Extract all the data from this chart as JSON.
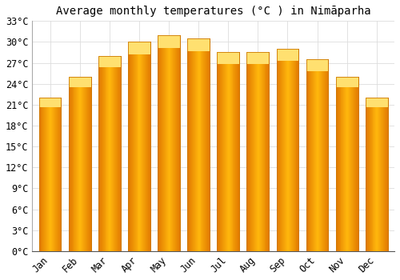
{
  "title": "Average monthly temperatures (°C ) in Nimāparha",
  "months": [
    "Jan",
    "Feb",
    "Mar",
    "Apr",
    "May",
    "Jun",
    "Jul",
    "Aug",
    "Sep",
    "Oct",
    "Nov",
    "Dec"
  ],
  "values": [
    22,
    25,
    28,
    30,
    31,
    30.5,
    28.5,
    28.5,
    29,
    27.5,
    25,
    22
  ],
  "bar_color_center": "#FFB900",
  "bar_color_edge": "#E07800",
  "bar_color_top": "#FFD050",
  "ylim": [
    0,
    33
  ],
  "ytick_step": 3,
  "background_color": "#ffffff",
  "grid_color": "#dddddd",
  "title_fontsize": 10,
  "tick_fontsize": 8.5,
  "bar_width": 0.75
}
